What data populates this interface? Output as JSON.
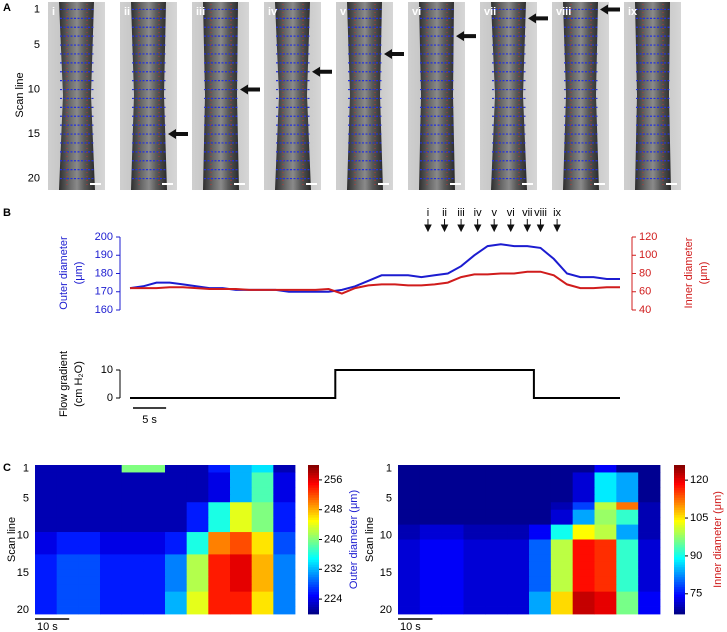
{
  "panel_labels": [
    "A",
    "B",
    "C"
  ],
  "chart_data": [
    {
      "type": "image-strip",
      "y_label": "Scan line",
      "ylim": [
        0.5,
        20.5
      ],
      "yticks": [
        1,
        5,
        10,
        15,
        20
      ],
      "frames": [
        "i",
        "ii",
        "iii",
        "iv",
        "v",
        "vi",
        "vii",
        "viii",
        "ix"
      ],
      "arrow_scan_line": [
        null,
        15,
        10,
        8,
        6,
        4,
        2,
        1,
        null
      ]
    },
    {
      "type": "line",
      "xlim": [
        0,
        74
      ],
      "x": [
        0,
        2,
        4,
        6,
        8,
        10,
        12,
        14,
        16,
        18,
        20,
        22,
        24,
        26,
        28,
        30,
        32,
        34,
        36,
        38,
        40,
        42,
        44,
        46,
        48,
        50,
        52,
        54,
        56,
        58,
        60,
        62,
        64,
        66,
        68,
        70,
        72,
        74
      ],
      "markers": {
        "labels": [
          "i",
          "ii",
          "iii",
          "iv",
          "v",
          "vi",
          "vii",
          "viii",
          "ix"
        ],
        "x": [
          45,
          47.5,
          50,
          52.5,
          55,
          57.5,
          60,
          62,
          64.5
        ]
      },
      "y_label": [
        "Outer diameter",
        "(μm)"
      ],
      "y2_label": [
        "Inner diameter",
        "(μm)"
      ],
      "ylim": [
        160,
        200
      ],
      "yticks": [
        160,
        170,
        180,
        190,
        200
      ],
      "y2lim": [
        40,
        120
      ],
      "y2ticks": [
        40,
        60,
        80,
        100,
        120
      ],
      "series": [
        {
          "color": "#1c1cd0",
          "values": [
            172,
            173,
            175,
            175,
            174,
            173,
            172,
            172,
            171,
            171,
            171,
            171,
            170,
            170,
            170,
            170,
            171,
            173,
            176,
            179,
            179,
            179,
            178,
            179,
            180,
            184,
            190,
            195,
            196,
            195,
            195,
            194,
            188,
            180,
            178,
            178,
            177,
            177
          ]
        },
        {
          "color": "#d01c1c",
          "axis": "y2",
          "values": [
            64,
            64,
            64,
            65,
            65,
            64,
            63,
            63,
            63,
            62,
            62,
            62,
            62,
            62,
            62,
            63,
            58,
            64,
            67,
            68,
            68,
            67,
            67,
            68,
            70,
            76,
            79,
            79,
            80,
            80,
            82,
            82,
            78,
            68,
            64,
            64,
            65,
            65
          ]
        }
      ]
    },
    {
      "type": "step",
      "y_label": [
        "Flow gradient",
        "(cm H₂O)"
      ],
      "xlim": [
        0,
        74
      ],
      "ylim": [
        0,
        10
      ],
      "yticks": [
        0,
        10
      ],
      "x": [
        0,
        31,
        31,
        61,
        61,
        74
      ],
      "values": [
        0,
        0,
        10,
        10,
        0,
        0
      ],
      "color": "#000000",
      "scale_bar": {
        "value": 5,
        "label": "5 s"
      }
    },
    {
      "type": "heatmap",
      "y_label": "Scan line",
      "ylim": [
        0.5,
        20.5
      ],
      "yticks": [
        1,
        5,
        10,
        15,
        20
      ],
      "xlim": [
        0,
        76
      ],
      "scale_bar": {
        "value": 10,
        "label": "10 s"
      },
      "colorbar": {
        "label": "Outer diameter (μm)",
        "lim": [
          220,
          260
        ],
        "ticks": [
          224,
          232,
          240,
          248,
          256
        ],
        "color": "#1c1cd0"
      },
      "values": [
        [
          222,
          222,
          222,
          222,
          240,
          240,
          222,
          222,
          226,
          232,
          234,
          222
        ],
        [
          222,
          222,
          222,
          222,
          222,
          222,
          222,
          222,
          224,
          232,
          238,
          224
        ],
        [
          222,
          222,
          222,
          222,
          222,
          222,
          222,
          222,
          224,
          232,
          238,
          224
        ],
        [
          222,
          222,
          222,
          222,
          222,
          222,
          222,
          222,
          224,
          232,
          238,
          224
        ],
        [
          222,
          222,
          222,
          222,
          222,
          222,
          222,
          222,
          224,
          232,
          238,
          224
        ],
        [
          222,
          222,
          222,
          222,
          222,
          222,
          222,
          226,
          236,
          244,
          240,
          226
        ],
        [
          222,
          222,
          222,
          222,
          222,
          222,
          222,
          226,
          236,
          244,
          240,
          226
        ],
        [
          222,
          222,
          222,
          222,
          222,
          222,
          222,
          226,
          236,
          244,
          240,
          226
        ],
        [
          222,
          222,
          222,
          222,
          222,
          222,
          222,
          226,
          236,
          244,
          240,
          226
        ],
        [
          224,
          226,
          226,
          224,
          224,
          224,
          226,
          236,
          250,
          252,
          246,
          228
        ],
        [
          224,
          226,
          226,
          224,
          224,
          224,
          226,
          236,
          250,
          252,
          246,
          228
        ],
        [
          224,
          226,
          226,
          224,
          224,
          224,
          226,
          236,
          250,
          252,
          246,
          228
        ],
        [
          226,
          228,
          228,
          226,
          226,
          226,
          230,
          242,
          254,
          256,
          248,
          230
        ],
        [
          226,
          228,
          228,
          226,
          226,
          226,
          230,
          242,
          254,
          256,
          248,
          230
        ],
        [
          226,
          228,
          228,
          226,
          226,
          226,
          230,
          242,
          254,
          256,
          248,
          230
        ],
        [
          226,
          228,
          228,
          226,
          226,
          226,
          230,
          242,
          254,
          256,
          248,
          230
        ],
        [
          226,
          228,
          228,
          226,
          226,
          226,
          230,
          242,
          254,
          256,
          248,
          230
        ],
        [
          226,
          228,
          228,
          226,
          226,
          226,
          232,
          244,
          254,
          254,
          246,
          230
        ],
        [
          226,
          228,
          228,
          226,
          226,
          226,
          232,
          244,
          254,
          254,
          246,
          230
        ],
        [
          226,
          228,
          228,
          226,
          226,
          226,
          232,
          244,
          254,
          254,
          246,
          230
        ]
      ]
    },
    {
      "type": "heatmap",
      "y_label": "Scan line",
      "ylim": [
        0.5,
        20.5
      ],
      "yticks": [
        1,
        5,
        10,
        15,
        20
      ],
      "xlim": [
        0,
        76
      ],
      "scale_bar": {
        "value": 10,
        "label": "10 s"
      },
      "colorbar": {
        "label": "Inner diameter (μm)",
        "lim": [
          67,
          126
        ],
        "ticks": [
          75,
          90,
          105,
          120
        ],
        "color": "#d01c1c"
      },
      "values": [
        [
          68,
          68,
          68,
          68,
          68,
          68,
          68,
          68,
          68,
          74,
          68,
          68
        ],
        [
          68,
          68,
          68,
          68,
          68,
          68,
          68,
          68,
          72,
          88,
          84,
          68
        ],
        [
          68,
          68,
          68,
          68,
          68,
          68,
          68,
          68,
          72,
          88,
          84,
          68
        ],
        [
          68,
          68,
          68,
          68,
          68,
          68,
          68,
          68,
          72,
          88,
          84,
          68
        ],
        [
          68,
          68,
          68,
          68,
          68,
          68,
          68,
          68,
          72,
          88,
          84,
          68
        ],
        [
          68,
          68,
          68,
          68,
          68,
          68,
          68,
          70,
          78,
          100,
          112,
          70
        ],
        [
          68,
          68,
          68,
          68,
          68,
          68,
          68,
          72,
          84,
          98,
          92,
          70
        ],
        [
          68,
          68,
          68,
          68,
          68,
          68,
          68,
          72,
          84,
          98,
          92,
          70
        ],
        [
          70,
          72,
          72,
          70,
          70,
          70,
          74,
          90,
          104,
          100,
          84,
          70
        ],
        [
          70,
          72,
          72,
          70,
          70,
          70,
          74,
          90,
          104,
          100,
          84,
          70
        ],
        [
          72,
          74,
          74,
          72,
          72,
          72,
          80,
          100,
          118,
          116,
          92,
          72
        ],
        [
          72,
          74,
          74,
          72,
          72,
          72,
          80,
          100,
          118,
          116,
          92,
          72
        ],
        [
          72,
          74,
          74,
          72,
          72,
          72,
          80,
          100,
          118,
          116,
          92,
          72
        ],
        [
          72,
          74,
          74,
          72,
          72,
          72,
          80,
          100,
          118,
          116,
          92,
          72
        ],
        [
          72,
          74,
          74,
          72,
          72,
          72,
          80,
          100,
          118,
          116,
          92,
          72
        ],
        [
          72,
          74,
          74,
          72,
          72,
          72,
          80,
          100,
          118,
          116,
          92,
          72
        ],
        [
          72,
          74,
          74,
          72,
          72,
          72,
          80,
          100,
          118,
          116,
          92,
          72
        ],
        [
          72,
          74,
          74,
          72,
          72,
          72,
          84,
          106,
          122,
          120,
          96,
          74
        ],
        [
          72,
          74,
          74,
          72,
          72,
          72,
          84,
          106,
          122,
          120,
          96,
          74
        ],
        [
          72,
          74,
          74,
          72,
          72,
          72,
          84,
          106,
          122,
          120,
          96,
          74
        ]
      ]
    }
  ]
}
